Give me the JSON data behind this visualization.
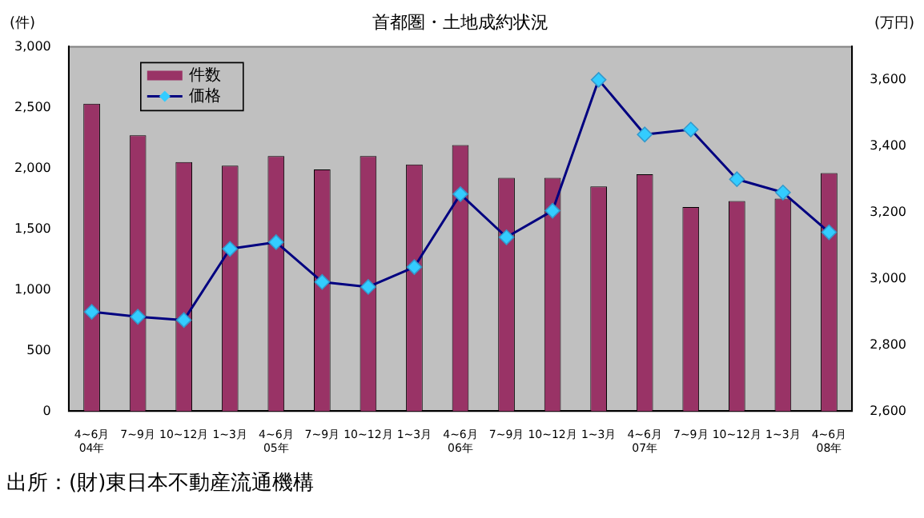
{
  "chart_data": {
    "type": "bar",
    "title": "首都圏・土地成約状況",
    "ylabel": "(件)",
    "y2label": "(万円)",
    "categories": [
      "4~6月\n04年",
      "7~9月",
      "10~12月",
      "1~3月",
      "4~6月\n05年",
      "7~9月",
      "10~12月",
      "1~3月",
      "4~6月\n06年",
      "7~9月",
      "10~12月",
      "1~3月",
      "4~6月\n07年",
      "7~9月",
      "10~12月",
      "1~3月",
      "4~6月\n08年"
    ],
    "series": [
      {
        "name": "件数",
        "color": "#993366",
        "values": [
          2530,
          2270,
          2050,
          2020,
          2100,
          1990,
          2100,
          2030,
          2190,
          1920,
          1920,
          1850,
          1950,
          1680,
          1730,
          1750,
          1960
        ]
      },
      {
        "name": "価格",
        "type": "line",
        "axis": "y2",
        "color": "#000080",
        "marker": "diamond",
        "values": [
          2900,
          2885,
          2875,
          3090,
          3110,
          2990,
          2975,
          3035,
          3255,
          3125,
          3205,
          3600,
          3435,
          3450,
          3300,
          3260,
          3140
        ]
      }
    ],
    "ylim": [
      0,
      3000
    ],
    "yticks": [
      {
        "value": 0,
        "label": "0"
      },
      {
        "value": 500,
        "label": "500"
      },
      {
        "value": 1000,
        "label": "1,000"
      },
      {
        "value": 1500,
        "label": "1,500"
      },
      {
        "value": 2000,
        "label": "2,000"
      },
      {
        "value": 2500,
        "label": "2,500"
      },
      {
        "value": 3000,
        "label": "3,000"
      }
    ],
    "y2lim": [
      2600,
      3700
    ],
    "y2ticks": [
      {
        "value": 2600,
        "label": "2,600"
      },
      {
        "value": 2800,
        "label": "2,800"
      },
      {
        "value": 3000,
        "label": "3,000"
      },
      {
        "value": 3200,
        "label": "3,200"
      },
      {
        "value": 3400,
        "label": "3,400"
      },
      {
        "value": 3600,
        "label": "3,600"
      }
    ],
    "legend": "top left",
    "grid": false,
    "annotations": [
      "出所：(財)東日本不動産流通機構"
    ]
  }
}
